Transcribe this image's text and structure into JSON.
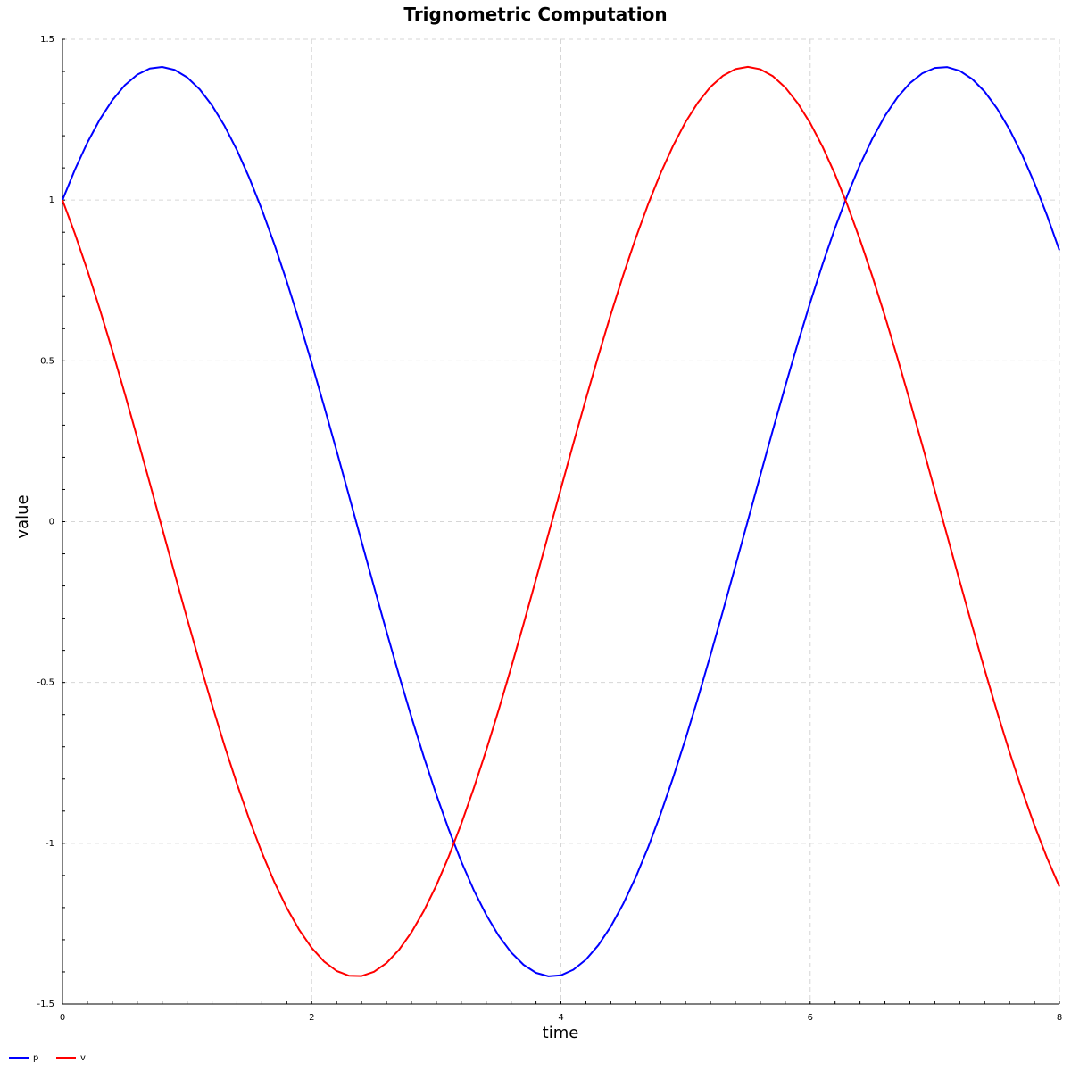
{
  "chart_data": {
    "type": "line",
    "title": "Trignometric Computation",
    "xlabel": "time",
    "ylabel": "value",
    "xlim": [
      0,
      8
    ],
    "ylim": [
      -1.5,
      1.5
    ],
    "x_ticks": [
      "0",
      "2",
      "4",
      "6",
      "8"
    ],
    "y_ticks": [
      "1.5",
      "1",
      "0.5",
      "0",
      "-0.5",
      "-1",
      "-1.5"
    ],
    "grid": true,
    "legend_position": "bottom-left",
    "series": [
      {
        "name": "p",
        "color": "#0000ff",
        "formula": "sin(t) + cos(t)",
        "t_range": [
          0,
          8
        ],
        "t_step": 0.1
      },
      {
        "name": "v",
        "color": "#ff0000",
        "formula": "cos(t) - sin(t)",
        "t_range": [
          0,
          8
        ],
        "t_step": 0.1
      }
    ]
  }
}
